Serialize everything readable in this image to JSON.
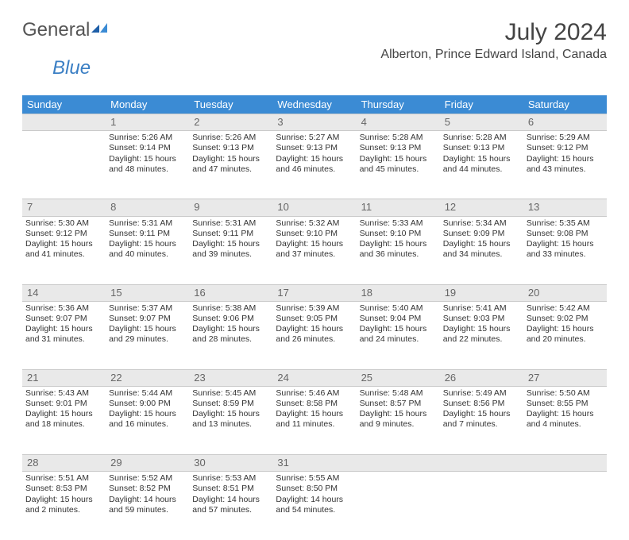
{
  "logo": {
    "text1": "General",
    "text2": "Blue"
  },
  "title": "July 2024",
  "location": "Alberton, Prince Edward Island, Canada",
  "colors": {
    "header_bg": "#3b8bd4",
    "daynum_bg": "#e9e9e9",
    "text": "#333333"
  },
  "weekdays": [
    "Sunday",
    "Monday",
    "Tuesday",
    "Wednesday",
    "Thursday",
    "Friday",
    "Saturday"
  ],
  "weeks": [
    {
      "nums": [
        "",
        "1",
        "2",
        "3",
        "4",
        "5",
        "6"
      ],
      "cells": [
        [],
        [
          "Sunrise: 5:26 AM",
          "Sunset: 9:14 PM",
          "Daylight: 15 hours",
          "and 48 minutes."
        ],
        [
          "Sunrise: 5:26 AM",
          "Sunset: 9:13 PM",
          "Daylight: 15 hours",
          "and 47 minutes."
        ],
        [
          "Sunrise: 5:27 AM",
          "Sunset: 9:13 PM",
          "Daylight: 15 hours",
          "and 46 minutes."
        ],
        [
          "Sunrise: 5:28 AM",
          "Sunset: 9:13 PM",
          "Daylight: 15 hours",
          "and 45 minutes."
        ],
        [
          "Sunrise: 5:28 AM",
          "Sunset: 9:13 PM",
          "Daylight: 15 hours",
          "and 44 minutes."
        ],
        [
          "Sunrise: 5:29 AM",
          "Sunset: 9:12 PM",
          "Daylight: 15 hours",
          "and 43 minutes."
        ]
      ]
    },
    {
      "nums": [
        "7",
        "8",
        "9",
        "10",
        "11",
        "12",
        "13"
      ],
      "cells": [
        [
          "Sunrise: 5:30 AM",
          "Sunset: 9:12 PM",
          "Daylight: 15 hours",
          "and 41 minutes."
        ],
        [
          "Sunrise: 5:31 AM",
          "Sunset: 9:11 PM",
          "Daylight: 15 hours",
          "and 40 minutes."
        ],
        [
          "Sunrise: 5:31 AM",
          "Sunset: 9:11 PM",
          "Daylight: 15 hours",
          "and 39 minutes."
        ],
        [
          "Sunrise: 5:32 AM",
          "Sunset: 9:10 PM",
          "Daylight: 15 hours",
          "and 37 minutes."
        ],
        [
          "Sunrise: 5:33 AM",
          "Sunset: 9:10 PM",
          "Daylight: 15 hours",
          "and 36 minutes."
        ],
        [
          "Sunrise: 5:34 AM",
          "Sunset: 9:09 PM",
          "Daylight: 15 hours",
          "and 34 minutes."
        ],
        [
          "Sunrise: 5:35 AM",
          "Sunset: 9:08 PM",
          "Daylight: 15 hours",
          "and 33 minutes."
        ]
      ]
    },
    {
      "nums": [
        "14",
        "15",
        "16",
        "17",
        "18",
        "19",
        "20"
      ],
      "cells": [
        [
          "Sunrise: 5:36 AM",
          "Sunset: 9:07 PM",
          "Daylight: 15 hours",
          "and 31 minutes."
        ],
        [
          "Sunrise: 5:37 AM",
          "Sunset: 9:07 PM",
          "Daylight: 15 hours",
          "and 29 minutes."
        ],
        [
          "Sunrise: 5:38 AM",
          "Sunset: 9:06 PM",
          "Daylight: 15 hours",
          "and 28 minutes."
        ],
        [
          "Sunrise: 5:39 AM",
          "Sunset: 9:05 PM",
          "Daylight: 15 hours",
          "and 26 minutes."
        ],
        [
          "Sunrise: 5:40 AM",
          "Sunset: 9:04 PM",
          "Daylight: 15 hours",
          "and 24 minutes."
        ],
        [
          "Sunrise: 5:41 AM",
          "Sunset: 9:03 PM",
          "Daylight: 15 hours",
          "and 22 minutes."
        ],
        [
          "Sunrise: 5:42 AM",
          "Sunset: 9:02 PM",
          "Daylight: 15 hours",
          "and 20 minutes."
        ]
      ]
    },
    {
      "nums": [
        "21",
        "22",
        "23",
        "24",
        "25",
        "26",
        "27"
      ],
      "cells": [
        [
          "Sunrise: 5:43 AM",
          "Sunset: 9:01 PM",
          "Daylight: 15 hours",
          "and 18 minutes."
        ],
        [
          "Sunrise: 5:44 AM",
          "Sunset: 9:00 PM",
          "Daylight: 15 hours",
          "and 16 minutes."
        ],
        [
          "Sunrise: 5:45 AM",
          "Sunset: 8:59 PM",
          "Daylight: 15 hours",
          "and 13 minutes."
        ],
        [
          "Sunrise: 5:46 AM",
          "Sunset: 8:58 PM",
          "Daylight: 15 hours",
          "and 11 minutes."
        ],
        [
          "Sunrise: 5:48 AM",
          "Sunset: 8:57 PM",
          "Daylight: 15 hours",
          "and 9 minutes."
        ],
        [
          "Sunrise: 5:49 AM",
          "Sunset: 8:56 PM",
          "Daylight: 15 hours",
          "and 7 minutes."
        ],
        [
          "Sunrise: 5:50 AM",
          "Sunset: 8:55 PM",
          "Daylight: 15 hours",
          "and 4 minutes."
        ]
      ]
    },
    {
      "nums": [
        "28",
        "29",
        "30",
        "31",
        "",
        "",
        ""
      ],
      "cells": [
        [
          "Sunrise: 5:51 AM",
          "Sunset: 8:53 PM",
          "Daylight: 15 hours",
          "and 2 minutes."
        ],
        [
          "Sunrise: 5:52 AM",
          "Sunset: 8:52 PM",
          "Daylight: 14 hours",
          "and 59 minutes."
        ],
        [
          "Sunrise: 5:53 AM",
          "Sunset: 8:51 PM",
          "Daylight: 14 hours",
          "and 57 minutes."
        ],
        [
          "Sunrise: 5:55 AM",
          "Sunset: 8:50 PM",
          "Daylight: 14 hours",
          "and 54 minutes."
        ],
        [],
        [],
        []
      ]
    }
  ]
}
